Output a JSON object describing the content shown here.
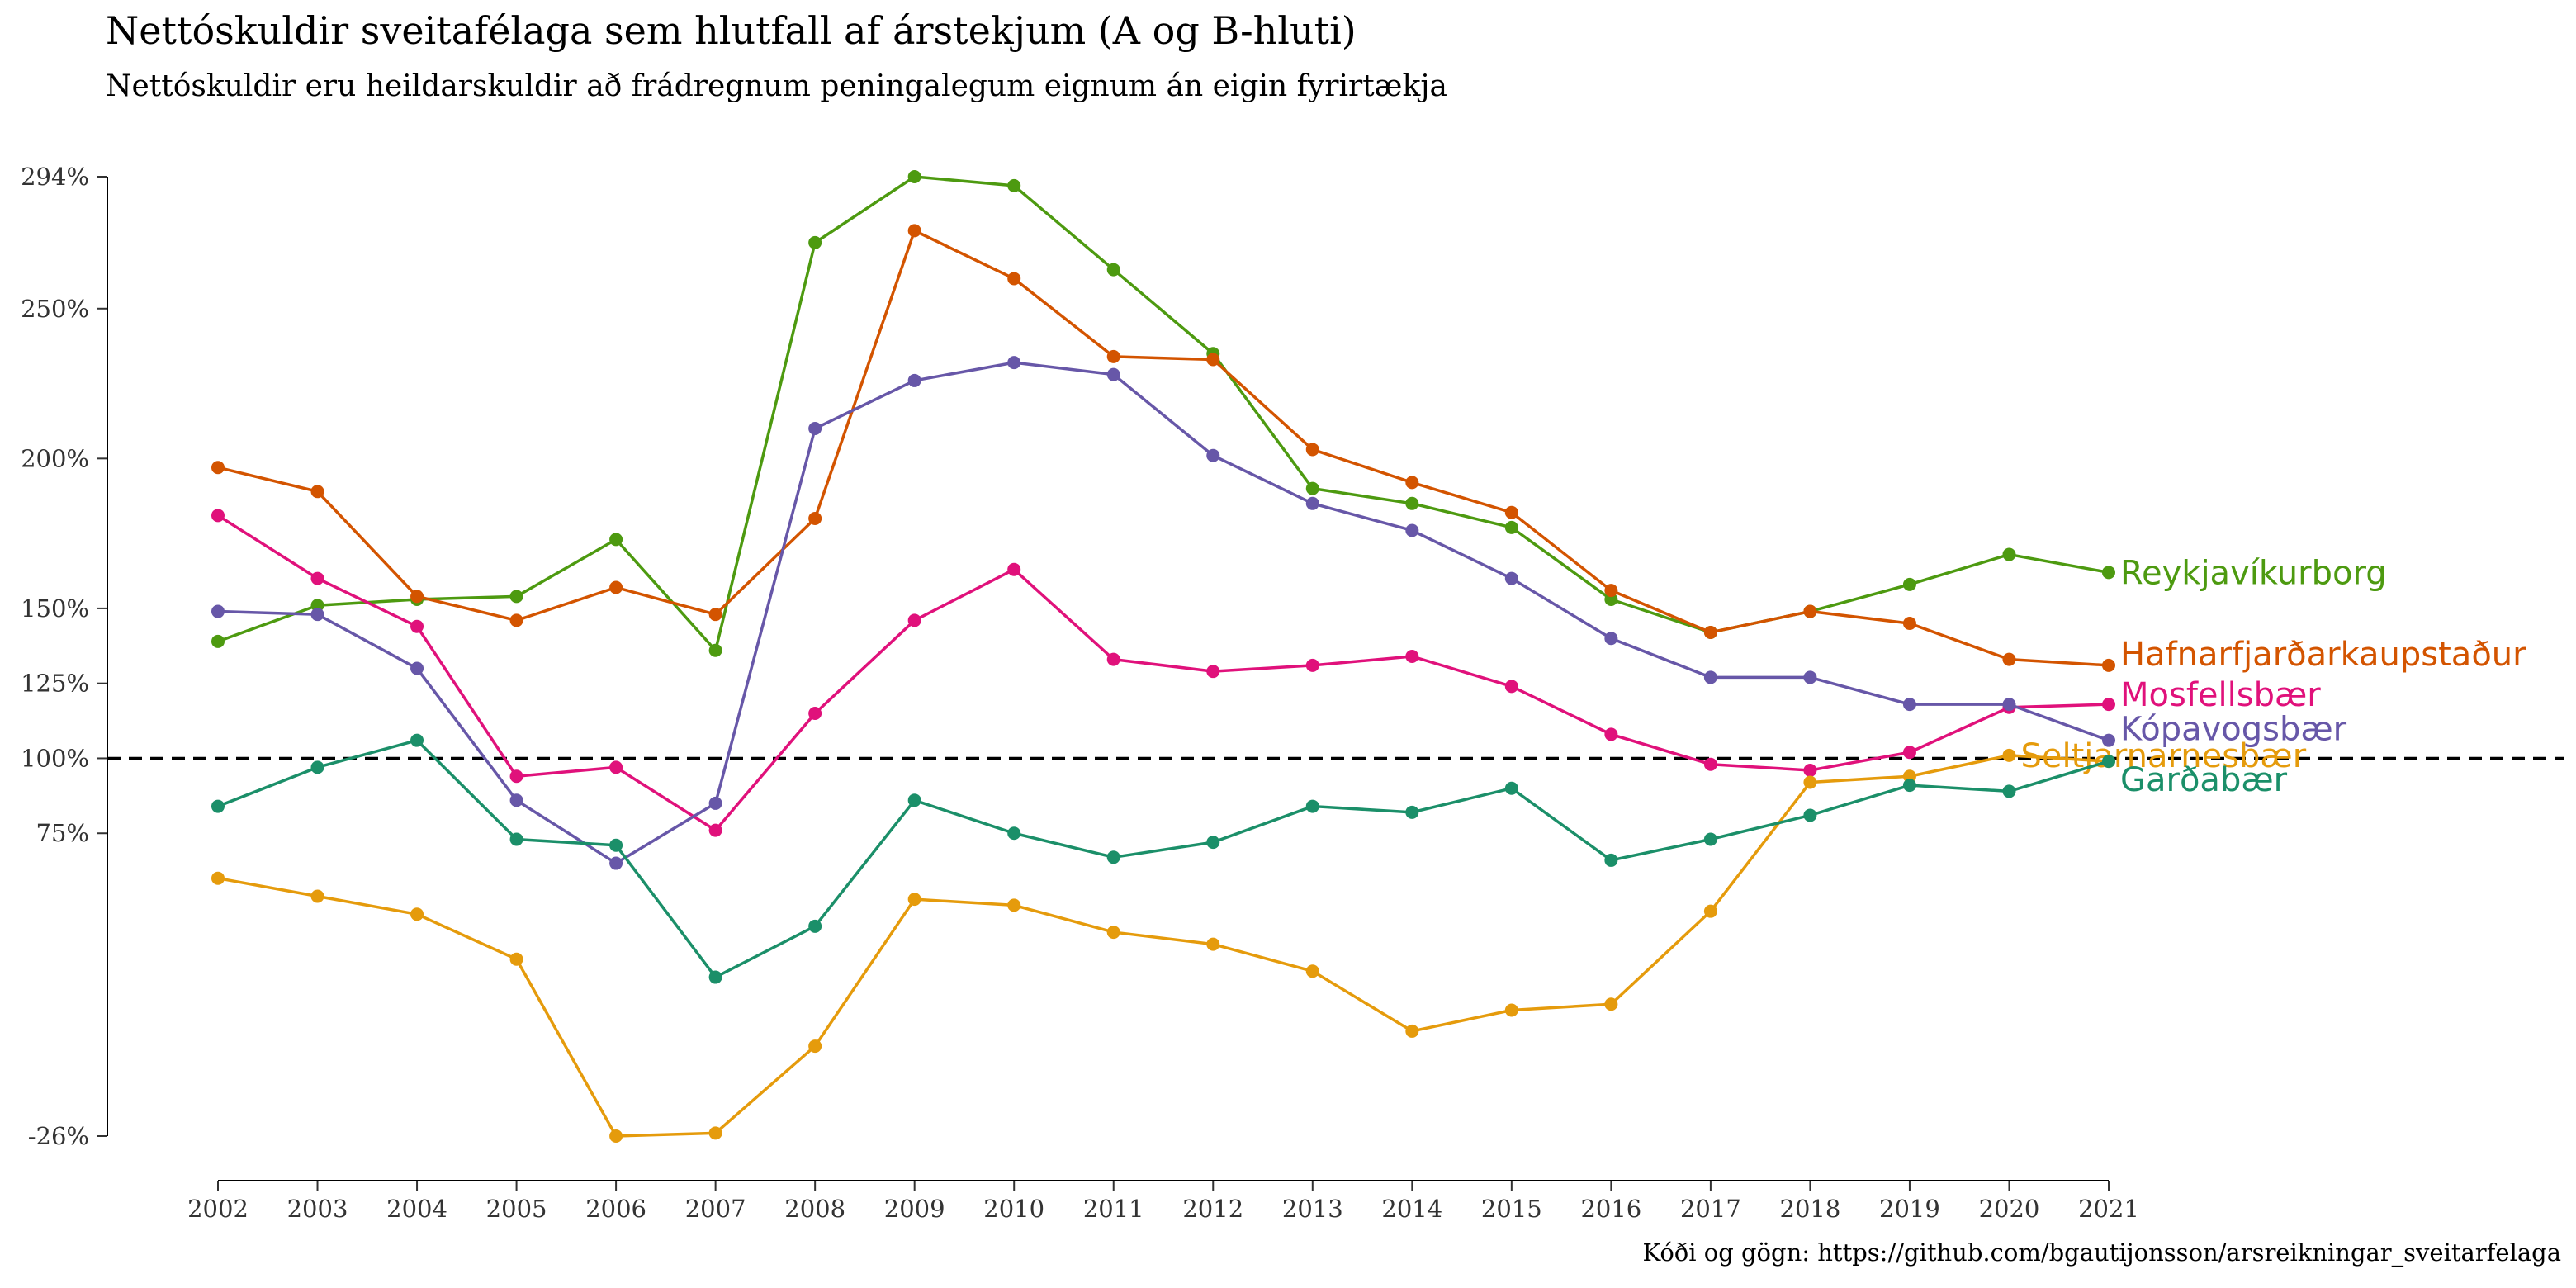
{
  "title": "Nettóskuldir sveitafélaga sem hlutfall af árstekjum (A og B-hluti)",
  "subtitle": "Nettóskuldir eru heildarskuldir að frádregnum peningalegum eignum án eigin fyrirtækja",
  "caption": "Kóði og gögn: https://github.com/bgautijonsson/arsreikningar_sveitarfelaga",
  "chart_data": {
    "type": "line",
    "x": [
      2002,
      2003,
      2004,
      2005,
      2006,
      2007,
      2008,
      2009,
      2010,
      2011,
      2012,
      2013,
      2014,
      2015,
      2016,
      2017,
      2018,
      2019,
      2020,
      2021
    ],
    "y_ticks": [
      "294%",
      "250%",
      "200%",
      "150%",
      "125%",
      "100%",
      "75%",
      "-26%"
    ],
    "y_tick_values": [
      294,
      250,
      200,
      150,
      125,
      100,
      75,
      -26
    ],
    "ylim": [
      -26,
      294
    ],
    "reference_line": {
      "value": 100,
      "style": "dashed"
    },
    "grid": false,
    "legend": "direct labels at line ends",
    "series": [
      {
        "name": "Reykjavíkurborg",
        "color": "#4d9a10",
        "values": [
          139,
          151,
          153,
          154,
          173,
          136,
          272,
          294,
          291,
          263,
          235,
          190,
          185,
          177,
          153,
          142,
          149,
          158,
          168,
          162
        ]
      },
      {
        "name": "Hafnarfjarðarkaupstaður",
        "color": "#d35400",
        "values": [
          197,
          189,
          154,
          146,
          157,
          148,
          180,
          276,
          260,
          234,
          233,
          203,
          192,
          182,
          156,
          142,
          149,
          145,
          133,
          131
        ]
      },
      {
        "name": "Mosfellsbær",
        "color": "#e0117b",
        "values": [
          181,
          160,
          144,
          94,
          97,
          76,
          115,
          146,
          163,
          133,
          129,
          131,
          134,
          124,
          108,
          98,
          96,
          102,
          117,
          118
        ]
      },
      {
        "name": "Kópavogsbær",
        "color": "#6757a8",
        "values": [
          149,
          148,
          130,
          86,
          65,
          85,
          210,
          226,
          232,
          228,
          201,
          185,
          176,
          160,
          140,
          127,
          127,
          118,
          118,
          106
        ]
      },
      {
        "name": "Seltjarnarnesbær",
        "color": "#e59b0c",
        "values": [
          60,
          54,
          48,
          33,
          -26,
          -25,
          4,
          53,
          51,
          42,
          38,
          29,
          9,
          16,
          18,
          49,
          92,
          94,
          101,
          99
        ]
      },
      {
        "name": "Garðabær",
        "color": "#1b8f69",
        "values": [
          84,
          97,
          106,
          73,
          71,
          27,
          44,
          86,
          75,
          67,
          72,
          84,
          82,
          90,
          66,
          73,
          81,
          91,
          89,
          99
        ]
      }
    ]
  }
}
